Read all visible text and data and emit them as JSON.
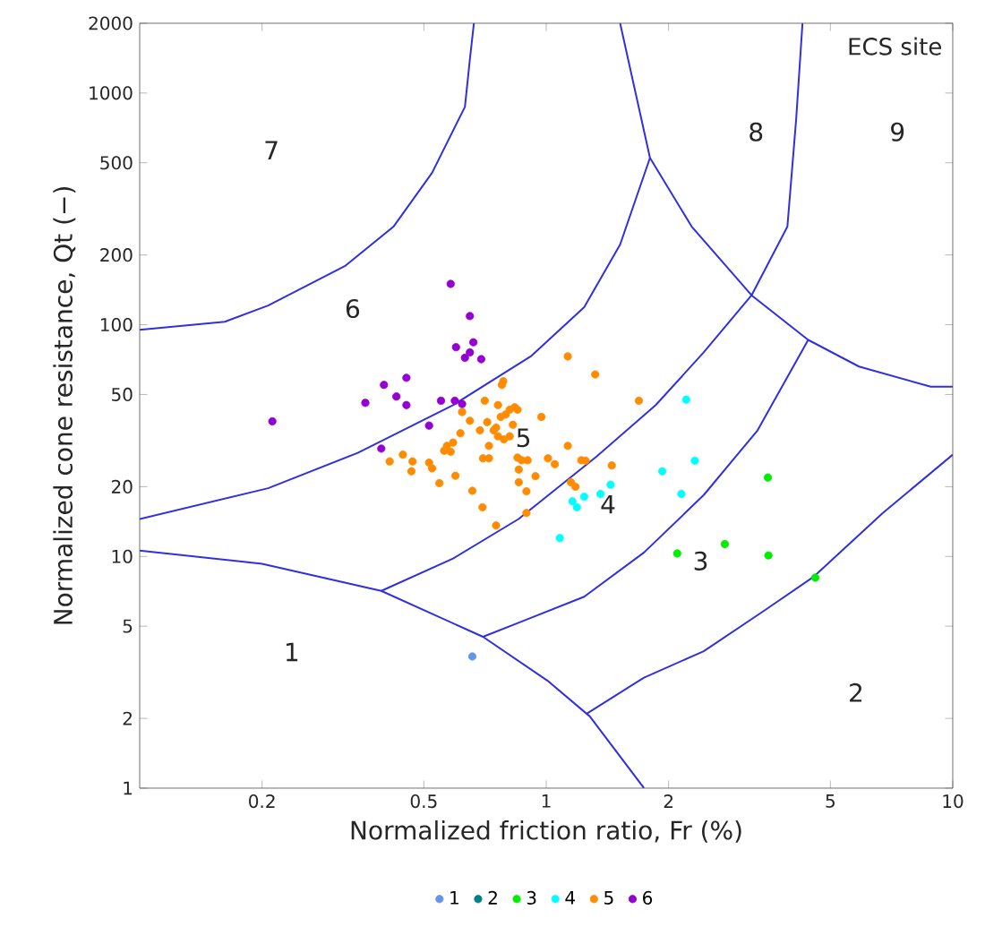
{
  "chart_data": {
    "type": "scatter",
    "xlabel": "Normalized friction ratio, Fr (%)",
    "ylabel": "Normalized cone resistance, Qt (−)",
    "log": "xy",
    "xlim": [
      0.1,
      10
    ],
    "ylim": [
      1,
      2000
    ],
    "xticks": [
      0.2,
      0.5,
      1,
      2,
      5,
      10
    ],
    "yticks": [
      1,
      2,
      5,
      10,
      20,
      50,
      100,
      200,
      500,
      1000,
      2000
    ],
    "marker": "circle",
    "legend": "bottom",
    "series": [
      {
        "type": "line",
        "marker": "none",
        "color": "#3030e0",
        "x": [
          0.1,
          0.162,
          0.207,
          0.321,
          0.421,
          0.524,
          0.631,
          0.649,
          0.664
        ],
        "values": [
          95,
          103,
          121,
          180,
          265,
          453,
          871,
          1400,
          2000
        ]
      },
      {
        "type": "line",
        "marker": "none",
        "color": "#3030e0",
        "x": [
          0.1,
          0.207,
          0.344,
          0.59,
          0.916,
          1.24,
          1.52,
          1.8
        ],
        "values": [
          14.5,
          19.7,
          28,
          45,
          73,
          119,
          222,
          525
        ]
      },
      {
        "type": "line",
        "marker": "none",
        "color": "#3030e0",
        "x": [
          0.1,
          0.2,
          0.393,
          0.699,
          1.01,
          1.28,
          1.74
        ],
        "values": [
          10.6,
          9.3,
          7.1,
          4.5,
          2.9,
          2.04,
          1
        ]
      },
      {
        "type": "line",
        "marker": "none",
        "color": "#3030e0",
        "x": [
          0.393,
          0.59,
          0.855,
          1.33,
          1.86,
          2.44,
          3.2,
          3.92,
          4.12,
          4.27
        ],
        "values": [
          7.1,
          9.8,
          14.5,
          27,
          45,
          76,
          134,
          265,
          773,
          2000
        ]
      },
      {
        "type": "line",
        "marker": "none",
        "color": "#3030e0",
        "x": [
          1.52,
          1.8,
          2.28,
          3.2,
          4.41,
          5.88,
          8.83,
          10
        ],
        "values": [
          2000,
          525,
          265,
          134,
          86,
          66,
          54,
          54
        ]
      },
      {
        "type": "line",
        "marker": "none",
        "color": "#3030e0",
        "x": [
          0.699,
          0.885,
          1.24,
          1.74,
          2.44,
          3.31,
          4.41
        ],
        "values": [
          4.5,
          5.3,
          6.7,
          10.4,
          18.4,
          35,
          86
        ]
      },
      {
        "type": "line",
        "marker": "none",
        "color": "#3030e0",
        "x": [
          1.26,
          1.74,
          2.44,
          3.42,
          4.56,
          6.73,
          10
        ],
        "values": [
          2.1,
          3.0,
          3.9,
          5.8,
          8.2,
          15.4,
          27.5
        ]
      },
      {
        "name": "1",
        "color": "#6495ed",
        "x": [
          0.658
        ],
        "values": [
          3.7
        ]
      },
      {
        "name": "2",
        "color": "#008080"
      },
      {
        "name": "3",
        "color": "#00ee00",
        "x": [
          2.1,
          2.75,
          3.51,
          3.52,
          4.59
        ],
        "values": [
          10.3,
          11.3,
          21.9,
          10.1,
          8.1
        ]
      },
      {
        "name": "4",
        "color": "#00ffff",
        "x": [
          2.21,
          2.32,
          1.93,
          2.15,
          1.44,
          1.36,
          1.24,
          1.16,
          1.19,
          1.08
        ],
        "values": [
          47.5,
          25.9,
          23.3,
          18.6,
          20.4,
          18.6,
          18.1,
          17.3,
          16.3,
          12.0
        ]
      },
      {
        "name": "5",
        "color": "#ff8c00",
        "x": [
          1.13,
          1.32,
          1.69,
          0.784,
          0.778,
          0.706,
          0.761,
          0.813,
          0.836,
          0.85,
          0.621,
          0.649,
          0.716,
          0.773,
          0.795,
          0.753,
          0.828,
          0.973,
          0.615,
          0.687,
          0.743,
          0.761,
          0.813,
          0.59,
          0.57,
          0.561,
          0.582,
          0.723,
          0.787,
          1.13,
          1.01,
          1.05,
          1.22,
          1.25,
          0.85,
          0.871,
          0.9,
          1.45,
          0.412,
          0.444,
          0.469,
          0.515,
          0.524,
          0.466,
          0.856,
          0.598,
          0.546,
          0.699,
          0.723,
          0.941,
          0.856,
          1.15,
          1.18,
          0.894,
          0.658,
          0.697,
          0.753,
          0.894
        ],
        "values": [
          73,
          61,
          47,
          57,
          55,
          47,
          45,
          43,
          44,
          43,
          42,
          38.5,
          38,
          40,
          41,
          36,
          37,
          40,
          34,
          35,
          35,
          33,
          33,
          31,
          30,
          28.6,
          28.3,
          30,
          32,
          30,
          26.5,
          25,
          26,
          25.9,
          26.7,
          26,
          26,
          24.7,
          25.7,
          27.5,
          25.7,
          25.4,
          24,
          23.3,
          23.7,
          22.3,
          20.7,
          26.5,
          26.5,
          22.2,
          20.9,
          20.9,
          20,
          19.1,
          19.2,
          16.3,
          13.6,
          15.4
        ]
      },
      {
        "name": "6",
        "color": "#9400d3",
        "x": [
          0.582,
          0.649,
          0.6,
          0.662,
          0.631,
          0.649,
          0.692,
          0.399,
          0.453,
          0.428,
          0.453,
          0.359,
          0.551,
          0.596,
          0.621,
          0.515,
          0.393,
          0.212
        ],
        "values": [
          150,
          109,
          80,
          84,
          72,
          76,
          71,
          55,
          59,
          49,
          45,
          46,
          47,
          47,
          45.5,
          36.7,
          29.2,
          38.3
        ]
      }
    ],
    "annotations": [
      "1",
      "2",
      "3",
      "4",
      "5",
      "6",
      "7",
      "8",
      "9",
      "ECS site"
    ]
  }
}
